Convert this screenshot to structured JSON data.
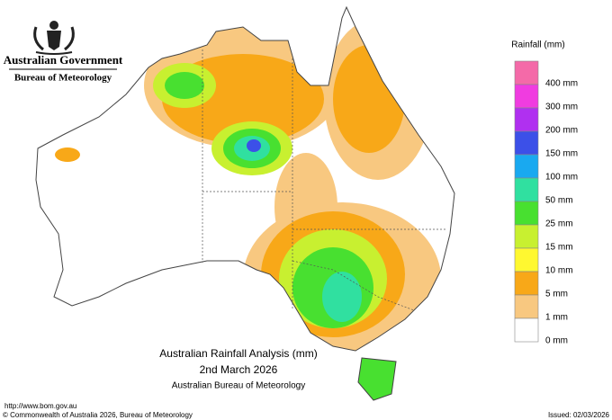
{
  "header": {
    "government": "Australian Government",
    "bureau": "Bureau of Meteorology"
  },
  "legend": {
    "title": "Rainfall (mm)",
    "items": [
      {
        "label": "400 mm",
        "color": "#f46aa8"
      },
      {
        "label": "300 mm",
        "color": "#f03ce0"
      },
      {
        "label": "200 mm",
        "color": "#b030f0"
      },
      {
        "label": "150 mm",
        "color": "#3c50e8"
      },
      {
        "label": "100 mm",
        "color": "#19a9f0"
      },
      {
        "label": "50 mm",
        "color": "#30e0a0"
      },
      {
        "label": "25 mm",
        "color": "#48e030"
      },
      {
        "label": "15 mm",
        "color": "#c8f030"
      },
      {
        "label": "10 mm",
        "color": "#fff830"
      },
      {
        "label": "5 mm",
        "color": "#f8a818"
      },
      {
        "label": "1 mm",
        "color": "#f8c880"
      },
      {
        "label": "0 mm",
        "color": "#ffffff"
      }
    ]
  },
  "map": {
    "title": "Australian Rainfall Analysis (mm)",
    "date": "2nd March 2026",
    "source": "Australian Bureau of Meteorology"
  },
  "footer": {
    "url": "http://www.bom.gov.au",
    "copyright": "© Commonwealth of Australia 2026, Bureau of Meteorology",
    "issued": "Issued: 02/03/2026"
  }
}
